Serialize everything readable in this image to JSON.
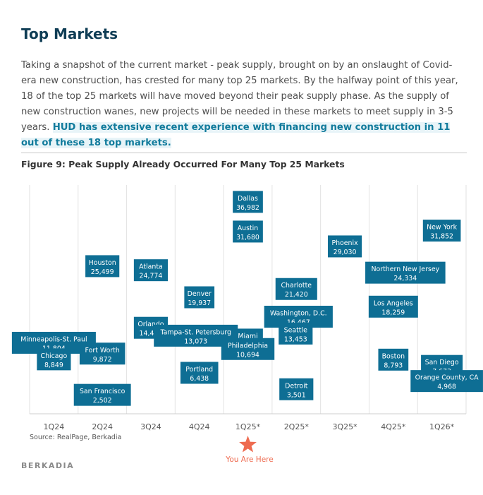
{
  "header": {
    "title": "Top Markets",
    "intro_plain": "Taking a snapshot of the current market - peak supply, brought on by an onslaught of Covid-era new construction, has crested for many top 25 markets. By the halfway point of this year, 18 of the top 25 markets will have moved beyond their peak supply phase. As the supply of new construction wanes, new projects will be needed in these markets to meet supply in 3-5 years. ",
    "intro_highlight": "HUD has extensive recent experience with financing new construction in 11 out of these 18 top markets."
  },
  "figure_title": "Figure 9: Peak Supply Already Occurred For Many Top 25 Markets",
  "source": "Source: RealPage, Berkadia",
  "brand": "BERKADIA",
  "marker": {
    "label": "You Are Here",
    "quarter": "1Q25*",
    "color": "#ee6b50"
  },
  "colors": {
    "box": "#0e6e94",
    "box_text": "#ffffff",
    "grid": "#e2e2e2",
    "accent": "#117b9c"
  },
  "chart_data": {
    "type": "scatter",
    "categories": [
      "1Q24",
      "2Q24",
      "3Q24",
      "4Q24",
      "1Q25*",
      "2Q25*",
      "3Q25*",
      "4Q25*",
      "1Q26*"
    ],
    "ylim": [
      0,
      40000
    ],
    "grid": true,
    "points": [
      {
        "market": "Minneapolis-St. Paul",
        "value": 11804,
        "quarter": "1Q24",
        "label": "11,804"
      },
      {
        "market": "Chicago",
        "value": 8849,
        "quarter": "1Q24",
        "label": "8,849"
      },
      {
        "market": "Houston",
        "value": 25499,
        "quarter": "2Q24",
        "label": "25,499"
      },
      {
        "market": "Fort Worth",
        "value": 9872,
        "quarter": "2Q24",
        "label": "9,872"
      },
      {
        "market": "San Francisco",
        "value": 2502,
        "quarter": "2Q24",
        "label": "2,502"
      },
      {
        "market": "Atlanta",
        "value": 24774,
        "quarter": "3Q24",
        "label": "24,774"
      },
      {
        "market": "Orlando",
        "value": 14485,
        "quarter": "3Q24",
        "label": "14,485"
      },
      {
        "market": "Denver",
        "value": 19937,
        "quarter": "4Q24",
        "label": "19,937"
      },
      {
        "market": "Tampa-St. Petersburg",
        "value": 13073,
        "quarter": "4Q24",
        "label": "13,073"
      },
      {
        "market": "Portland",
        "value": 6438,
        "quarter": "4Q24",
        "label": "6,438"
      },
      {
        "market": "Dallas",
        "value": 36982,
        "quarter": "1Q25*",
        "label": "36,982"
      },
      {
        "market": "Austin",
        "value": 31680,
        "quarter": "1Q25*",
        "label": "31,680"
      },
      {
        "market": "Miami",
        "value": 12378,
        "quarter": "1Q25*",
        "label": "12,378"
      },
      {
        "market": "Philadelphia",
        "value": 10694,
        "quarter": "1Q25*",
        "label": "10,694"
      },
      {
        "market": "Charlotte",
        "value": 21420,
        "quarter": "2Q25*",
        "label": "21,420"
      },
      {
        "market": "Washington, D.C.",
        "value": 16467,
        "quarter": "2Q25*",
        "label": "16,467"
      },
      {
        "market": "Seattle",
        "value": 13453,
        "quarter": "2Q25*",
        "label": "13,453"
      },
      {
        "market": "Detroit",
        "value": 3501,
        "quarter": "2Q25*",
        "label": "3,501"
      },
      {
        "market": "Phoenix",
        "value": 29030,
        "quarter": "3Q25*",
        "label": "29,030"
      },
      {
        "market": "Northern New Jersey",
        "value": 24334,
        "quarter": "4Q25*",
        "label": "24,334"
      },
      {
        "market": "Los Angeles",
        "value": 18259,
        "quarter": "4Q25*",
        "label": "18,259"
      },
      {
        "market": "Boston",
        "value": 8793,
        "quarter": "4Q25*",
        "label": "8,793"
      },
      {
        "market": "New York",
        "value": 31852,
        "quarter": "1Q26*",
        "label": "31,852"
      },
      {
        "market": "San Diego",
        "value": 7673,
        "quarter": "1Q26*",
        "label": "7,673"
      },
      {
        "market": "Orange County, CA",
        "value": 4968,
        "quarter": "1Q26*",
        "label": "4,968"
      }
    ]
  }
}
